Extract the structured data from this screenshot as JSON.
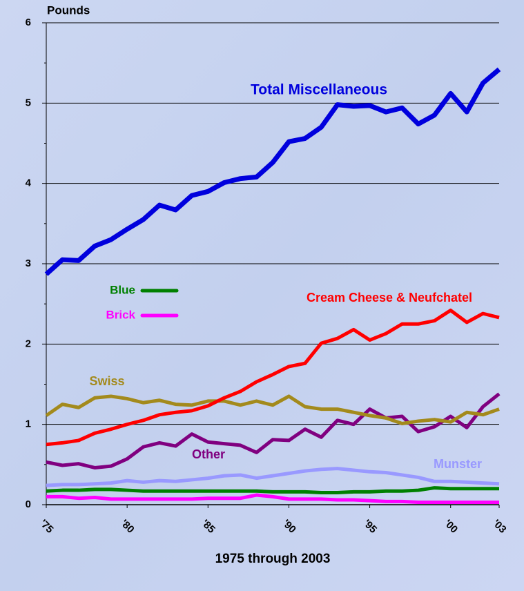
{
  "chart_data": {
    "type": "line",
    "y_label": "Pounds",
    "x_label": "1975 through 2003",
    "x": [
      1975,
      1976,
      1977,
      1978,
      1979,
      1980,
      1981,
      1982,
      1983,
      1984,
      1985,
      1986,
      1987,
      1988,
      1989,
      1990,
      1991,
      1992,
      1993,
      1994,
      1995,
      1996,
      1997,
      1998,
      1999,
      2000,
      2001,
      2002,
      2003
    ],
    "xlim": [
      1975,
      2003
    ],
    "xticks": [
      {
        "value": 1975,
        "label": "'75"
      },
      {
        "value": 1980,
        "label": "'80"
      },
      {
        "value": 1985,
        "label": "'85"
      },
      {
        "value": 1990,
        "label": "'90"
      },
      {
        "value": 1995,
        "label": "'95"
      },
      {
        "value": 2000,
        "label": "'00"
      },
      {
        "value": 2003,
        "label": "'03"
      }
    ],
    "ylim": [
      0,
      6
    ],
    "yticks": [
      0,
      1,
      2,
      3,
      4,
      5,
      6
    ],
    "grid": true,
    "series": [
      {
        "name": "Total Miscellaneous",
        "color": "#0000dd",
        "values": [
          2.87,
          3.05,
          3.04,
          3.22,
          3.3,
          3.43,
          3.55,
          3.73,
          3.67,
          3.85,
          3.9,
          4.01,
          4.06,
          4.08,
          4.26,
          4.52,
          4.56,
          4.7,
          4.98,
          4.96,
          4.97,
          4.89,
          4.94,
          4.74,
          4.85,
          5.12,
          4.89,
          5.25,
          5.42
        ]
      },
      {
        "name": "Cream Cheese & Neufchatel",
        "color": "#ff0000",
        "values": [
          0.75,
          0.77,
          0.8,
          0.89,
          0.94,
          1.0,
          1.05,
          1.12,
          1.15,
          1.17,
          1.23,
          1.33,
          1.41,
          1.53,
          1.62,
          1.72,
          1.76,
          2.01,
          2.07,
          2.18,
          2.05,
          2.13,
          2.25,
          2.25,
          2.29,
          2.42,
          2.27,
          2.38,
          2.33
        ]
      },
      {
        "name": "Swiss",
        "color": "#a38a1c",
        "values": [
          1.11,
          1.25,
          1.21,
          1.33,
          1.35,
          1.32,
          1.27,
          1.3,
          1.25,
          1.24,
          1.29,
          1.29,
          1.24,
          1.29,
          1.24,
          1.35,
          1.22,
          1.19,
          1.19,
          1.15,
          1.11,
          1.08,
          1.01,
          1.04,
          1.06,
          1.03,
          1.15,
          1.12,
          1.19
        ]
      },
      {
        "name": "Other",
        "color": "#800080",
        "values": [
          0.53,
          0.49,
          0.51,
          0.46,
          0.48,
          0.57,
          0.72,
          0.77,
          0.73,
          0.88,
          0.78,
          0.76,
          0.74,
          0.65,
          0.81,
          0.8,
          0.94,
          0.84,
          1.05,
          1.0,
          1.19,
          1.08,
          1.1,
          0.91,
          0.97,
          1.1,
          0.96,
          1.22,
          1.38
        ]
      },
      {
        "name": "Munster",
        "color": "#9999ff",
        "values": [
          0.24,
          0.25,
          0.25,
          0.26,
          0.27,
          0.3,
          0.28,
          0.3,
          0.29,
          0.31,
          0.33,
          0.36,
          0.37,
          0.33,
          0.36,
          0.39,
          0.42,
          0.44,
          0.45,
          0.43,
          0.41,
          0.4,
          0.37,
          0.34,
          0.29,
          0.29,
          0.28,
          0.27,
          0.26
        ]
      },
      {
        "name": "Blue",
        "color": "#008000",
        "values": [
          0.17,
          0.18,
          0.18,
          0.19,
          0.19,
          0.18,
          0.17,
          0.17,
          0.17,
          0.17,
          0.17,
          0.17,
          0.17,
          0.17,
          0.16,
          0.16,
          0.16,
          0.15,
          0.15,
          0.16,
          0.16,
          0.17,
          0.17,
          0.18,
          0.21,
          0.2,
          0.2,
          0.2,
          0.2
        ]
      },
      {
        "name": "Brick",
        "color": "#ff00ff",
        "values": [
          0.1,
          0.1,
          0.08,
          0.09,
          0.07,
          0.07,
          0.07,
          0.07,
          0.07,
          0.07,
          0.08,
          0.08,
          0.08,
          0.12,
          0.1,
          0.07,
          0.07,
          0.07,
          0.06,
          0.06,
          0.05,
          0.04,
          0.04,
          0.03,
          0.03,
          0.03,
          0.03,
          0.03,
          0.03
        ]
      }
    ]
  }
}
